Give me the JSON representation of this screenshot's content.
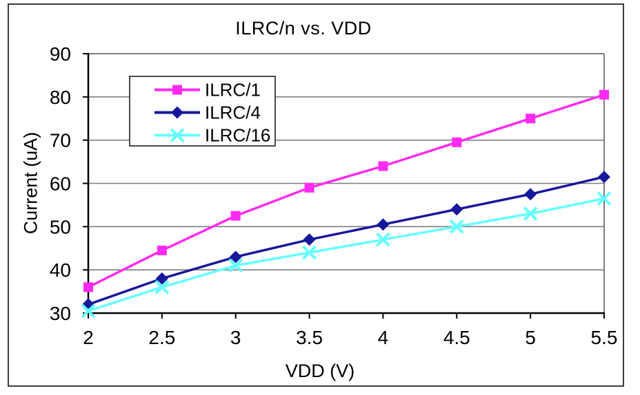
{
  "chart_data": {
    "type": "line",
    "title": "ILRC/n vs. VDD",
    "xlabel": "VDD (V)",
    "ylabel": "Current (uA)",
    "x": [
      2,
      2.5,
      3,
      3.5,
      4,
      4.5,
      5,
      5.5
    ],
    "xlim": [
      2,
      5.5
    ],
    "ylim": [
      30,
      90
    ],
    "xticks": [
      2,
      2.5,
      3,
      3.5,
      4,
      4.5,
      5,
      5.5
    ],
    "yticks": [
      30,
      40,
      50,
      60,
      70,
      80,
      90
    ],
    "grid": "horizontal",
    "legend_position": "inside-top-left",
    "series": [
      {
        "name": "ILRC/1",
        "marker": "square",
        "color": "#ff2bf2",
        "values": [
          36,
          44.5,
          52.5,
          59,
          64,
          69.5,
          75,
          80.5
        ]
      },
      {
        "name": "ILRC/4",
        "marker": "diamond",
        "color": "#17179b",
        "values": [
          32,
          38,
          43,
          47,
          50.5,
          54,
          57.5,
          61.5
        ]
      },
      {
        "name": "ILRC/16",
        "marker": "x",
        "color": "#66ffff",
        "values": [
          30.5,
          36,
          41,
          44,
          47,
          50,
          53,
          56.5
        ]
      }
    ],
    "colors": {
      "gridline": "#7d7d7d",
      "plot_border": "#7d7d7d",
      "axis": "#000000",
      "text": "#000000",
      "legend_border": "#4a4a4a",
      "figure_border": "#3c3c3c",
      "background": "#ffffff"
    }
  }
}
